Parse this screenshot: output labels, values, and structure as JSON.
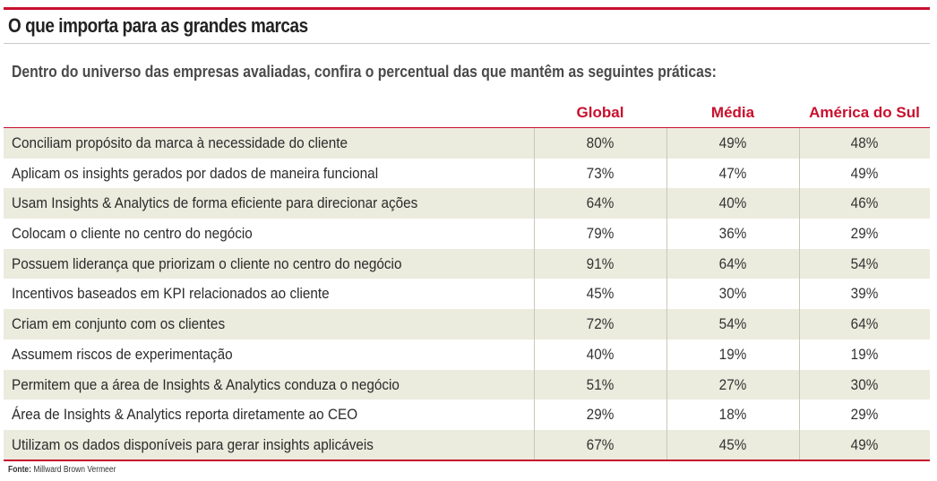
{
  "title": "O que importa para as grandes marcas",
  "subtitle": "Dentro do universo das empresas avaliadas, confira o percentual das que mantêm as seguintes práticas:",
  "source": {
    "label": "Fonte:",
    "text": "Millward Brown Vermeer"
  },
  "colors": {
    "accent": "#c8102e",
    "shaded_row": "#ebebde"
  },
  "chart_data": {
    "type": "table",
    "columns": [
      "Global",
      "Média",
      "América do Sul"
    ],
    "rows": [
      {
        "label": "Conciliam propósito da marca à necessidade do cliente",
        "values": [
          "80%",
          "49%",
          "48%"
        ]
      },
      {
        "label": "Aplicam os insights gerados por dados de maneira funcional",
        "values": [
          "73%",
          "47%",
          "49%"
        ]
      },
      {
        "label": "Usam Insights & Analytics de forma eficiente para direcionar ações",
        "values": [
          "64%",
          "40%",
          "46%"
        ]
      },
      {
        "label": "Colocam o cliente no centro do negócio",
        "values": [
          "79%",
          "36%",
          "29%"
        ]
      },
      {
        "label": "Possuem liderança que priorizam o cliente no centro do negócio",
        "values": [
          "91%",
          "64%",
          "54%"
        ]
      },
      {
        "label": "Incentivos baseados em KPI relacionados ao cliente",
        "values": [
          "45%",
          "30%",
          "39%"
        ]
      },
      {
        "label": "Criam em conjunto com os clientes",
        "values": [
          "72%",
          "54%",
          "64%"
        ]
      },
      {
        "label": "Assumem riscos de experimentação",
        "values": [
          "40%",
          "19%",
          "19%"
        ]
      },
      {
        "label": "Permitem que a área de Insights & Analytics conduza o negócio",
        "values": [
          "51%",
          "27%",
          "30%"
        ]
      },
      {
        "label": "Área de Insights & Analytics reporta diretamente ao CEO",
        "values": [
          "29%",
          "18%",
          "29%"
        ]
      },
      {
        "label": "Utilizam os dados disponíveis para gerar insights aplicáveis",
        "values": [
          "67%",
          "45%",
          "49%"
        ]
      }
    ]
  }
}
